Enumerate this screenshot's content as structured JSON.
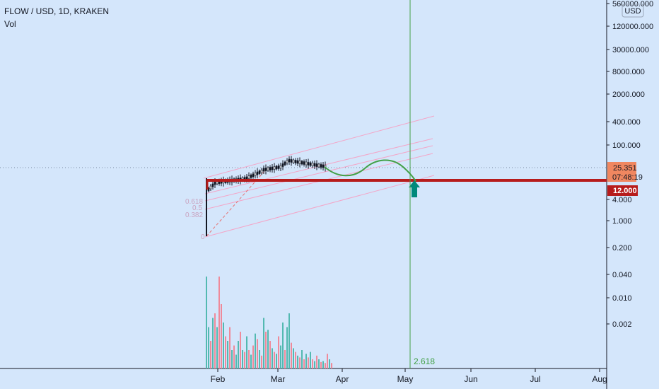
{
  "header": {
    "symbol": "FLOW / USD, 1D, KRAKEN",
    "volume_label": "Vol"
  },
  "price_axis": {
    "currency": "USD",
    "tick_labels": [
      "560000.000",
      "120000.000",
      "30000.000",
      "8000.000",
      "2000.000",
      "400.000",
      "100.000",
      "4.000",
      "1.000",
      "0.200",
      "0.040",
      "0.010",
      "0.002"
    ],
    "current_price": "25.351",
    "countdown": "07:48:19",
    "level_label": "12.000"
  },
  "time_axis": {
    "labels": [
      "Feb",
      "Mar",
      "Apr",
      "May",
      "Jun",
      "Jul",
      "Aug"
    ]
  },
  "fib_labels": [
    "0.618",
    "0.5",
    "0.382",
    "0"
  ],
  "extension_label": "2.618",
  "colors": {
    "background": "#d4e6fb",
    "up_volume": "#53b9b1",
    "down_volume": "#ef8a9a",
    "support_line": "#b71c1c",
    "channel": "#f3a6c8",
    "projection": "#43a047",
    "arrow": "#00897b",
    "price_badge": "#f08760"
  },
  "chart_data": {
    "type": "candlestick",
    "scale": "log",
    "support_level": 12,
    "current_price": 25.351,
    "fib_levels": [
      0.618,
      0.5,
      0.382,
      0
    ],
    "fib_extension": 2.618
  }
}
